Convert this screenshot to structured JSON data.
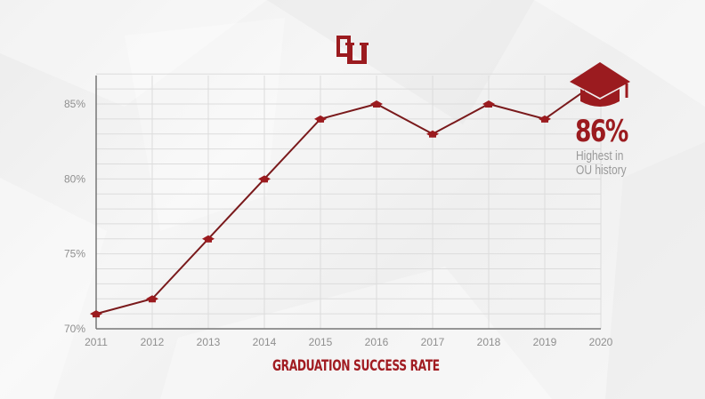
{
  "logo": {
    "text": "OU",
    "color": "#9b1b1f"
  },
  "callout": {
    "value": "86%",
    "subtitle_line1": "Highest in",
    "subtitle_line2": "OU history",
    "icon": "graduation-cap-icon"
  },
  "colors": {
    "accent": "#9b1b1f",
    "line": "#7a1a1c",
    "axis": "#777777",
    "grid": "#dcdcdc",
    "tick_text": "#8f8f8f",
    "background": "#efefef"
  },
  "chart_data": {
    "type": "line",
    "title": "GRADUATION SUCCESS RATE",
    "xlabel": "",
    "ylabel": "",
    "categories": [
      "2011",
      "2012",
      "2013",
      "2014",
      "2015",
      "2016",
      "2017",
      "2018",
      "2019",
      "2020"
    ],
    "series": [
      {
        "name": "Graduation Success Rate (%)",
        "values": [
          71,
          72,
          76,
          80,
          84,
          85,
          83,
          85,
          84,
          86
        ]
      }
    ],
    "yticks": [
      "70%",
      "75%",
      "80%",
      "85%"
    ],
    "ylim": [
      70,
      87
    ],
    "grid": {
      "horizontal_step": 1,
      "vertical": true
    },
    "legend": "none",
    "annotations": [
      {
        "x": "2020",
        "text": "86%",
        "note": "Highest in OU history",
        "marker": "graduation cap"
      }
    ],
    "marker": "graduation cap"
  }
}
